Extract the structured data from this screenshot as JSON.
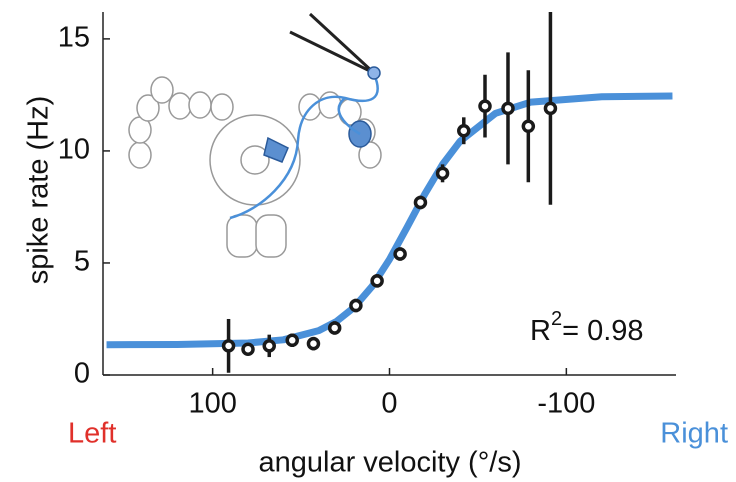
{
  "chart_data": {
    "type": "scatter",
    "x_label": "angular velocity (°/s)",
    "y_label": "spike rate (Hz)",
    "left_label": "Left",
    "right_label": "Right",
    "left_color": "#e0302a",
    "right_color": "#4a90d9",
    "annotation": [
      "R",
      "2",
      "= 0.98"
    ],
    "xlim": [
      162,
      -162
    ],
    "ylim": [
      0,
      16.2
    ],
    "xticks": [
      100,
      0,
      -100
    ],
    "yticks": [
      0,
      5,
      10,
      15
    ],
    "series": [
      {
        "type": "line",
        "color": "#4a90d9",
        "x": [
          160,
          120,
          80,
          60,
          40,
          30,
          20,
          10,
          0,
          -10,
          -20,
          -30,
          -40,
          -60,
          -80,
          -120,
          -160
        ],
        "values": [
          1.35,
          1.36,
          1.43,
          1.57,
          1.98,
          2.39,
          3.02,
          3.94,
          5.16,
          6.6,
          8.08,
          9.4,
          10.44,
          11.68,
          12.18,
          12.42,
          12.45
        ]
      },
      {
        "type": "scatter",
        "color": "#1a1a1a",
        "x": [
          91,
          80,
          68,
          55,
          43,
          31,
          19,
          7,
          -6,
          -17.5,
          -30,
          -42,
          -54,
          -67,
          -78.5,
          -91
        ],
        "values": [
          1.3,
          1.15,
          1.3,
          1.55,
          1.4,
          2.1,
          3.1,
          4.2,
          5.4,
          7.7,
          9.0,
          10.9,
          12.0,
          11.9,
          11.1,
          11.9
        ],
        "errors": [
          1.2,
          0.2,
          0.5,
          0.3,
          0.3,
          0.3,
          0.3,
          0.3,
          0.3,
          0.3,
          0.4,
          0.6,
          1.4,
          2.5,
          2.5,
          4.3
        ]
      }
    ]
  }
}
